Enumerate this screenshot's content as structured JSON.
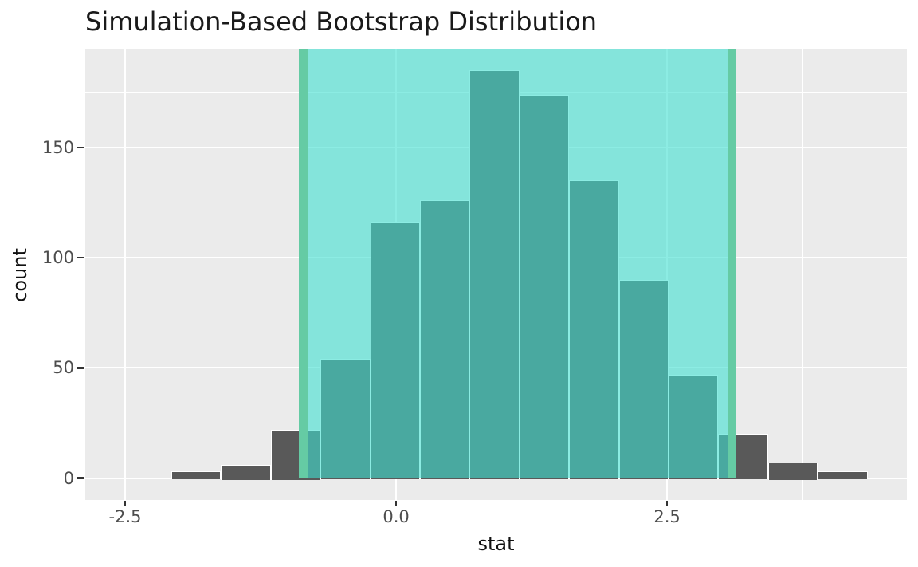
{
  "title": "Simulation-Based Bootstrap Distribution",
  "chart_data": {
    "type": "bar",
    "subtype": "histogram",
    "title": "Simulation-Based Bootstrap Distribution",
    "xlabel": "stat",
    "ylabel": "count",
    "x_domain": [
      -2.868,
      4.713
    ],
    "y_domain": [
      -9.95,
      194.5
    ],
    "x_ticks": [
      {
        "value": -2.5,
        "label": "-2.5"
      },
      {
        "value": 0.0,
        "label": "0.0"
      },
      {
        "value": 2.5,
        "label": "2.5"
      }
    ],
    "x_minor_ticks": [
      -1.25,
      1.25,
      3.75
    ],
    "y_ticks": [
      {
        "value": 0,
        "label": "0"
      },
      {
        "value": 50,
        "label": "50"
      },
      {
        "value": 100,
        "label": "100"
      },
      {
        "value": 150,
        "label": "150"
      }
    ],
    "y_minor_ticks": [
      25,
      75,
      125,
      175
    ],
    "grid": true,
    "legend": false,
    "bin_width": 0.459,
    "bins": [
      {
        "x0": -2.074,
        "x1": -1.615,
        "count": 3
      },
      {
        "x0": -1.615,
        "x1": -1.156,
        "count": 6
      },
      {
        "x0": -1.156,
        "x1": -0.698,
        "count": 22
      },
      {
        "x0": -0.698,
        "x1": -0.239,
        "count": 54
      },
      {
        "x0": -0.239,
        "x1": 0.22,
        "count": 116
      },
      {
        "x0": 0.22,
        "x1": 0.679,
        "count": 126
      },
      {
        "x0": 0.679,
        "x1": 1.138,
        "count": 185
      },
      {
        "x0": 1.138,
        "x1": 1.597,
        "count": 174
      },
      {
        "x0": 1.597,
        "x1": 2.055,
        "count": 135
      },
      {
        "x0": 2.055,
        "x1": 2.514,
        "count": 90
      },
      {
        "x0": 2.514,
        "x1": 2.973,
        "count": 47
      },
      {
        "x0": 2.973,
        "x1": 3.432,
        "count": 20
      },
      {
        "x0": 3.432,
        "x1": 3.891,
        "count": 7
      },
      {
        "x0": 3.891,
        "x1": 4.35,
        "count": 3
      }
    ],
    "confidence_interval": {
      "lower": -0.86,
      "upper": 3.1
    },
    "colors": {
      "bar_fill": "#595959",
      "bar_border": "#ffffff",
      "shade_fill": "#40e0d0",
      "shade_alpha": 0.6,
      "ci_line": "#65cba4",
      "panel_bg": "#ebebeb",
      "grid_line": "#ffffff",
      "axis_text": "#4d4d4d",
      "title_text": "#1a1a1a",
      "tick_mark": "#333333"
    }
  }
}
